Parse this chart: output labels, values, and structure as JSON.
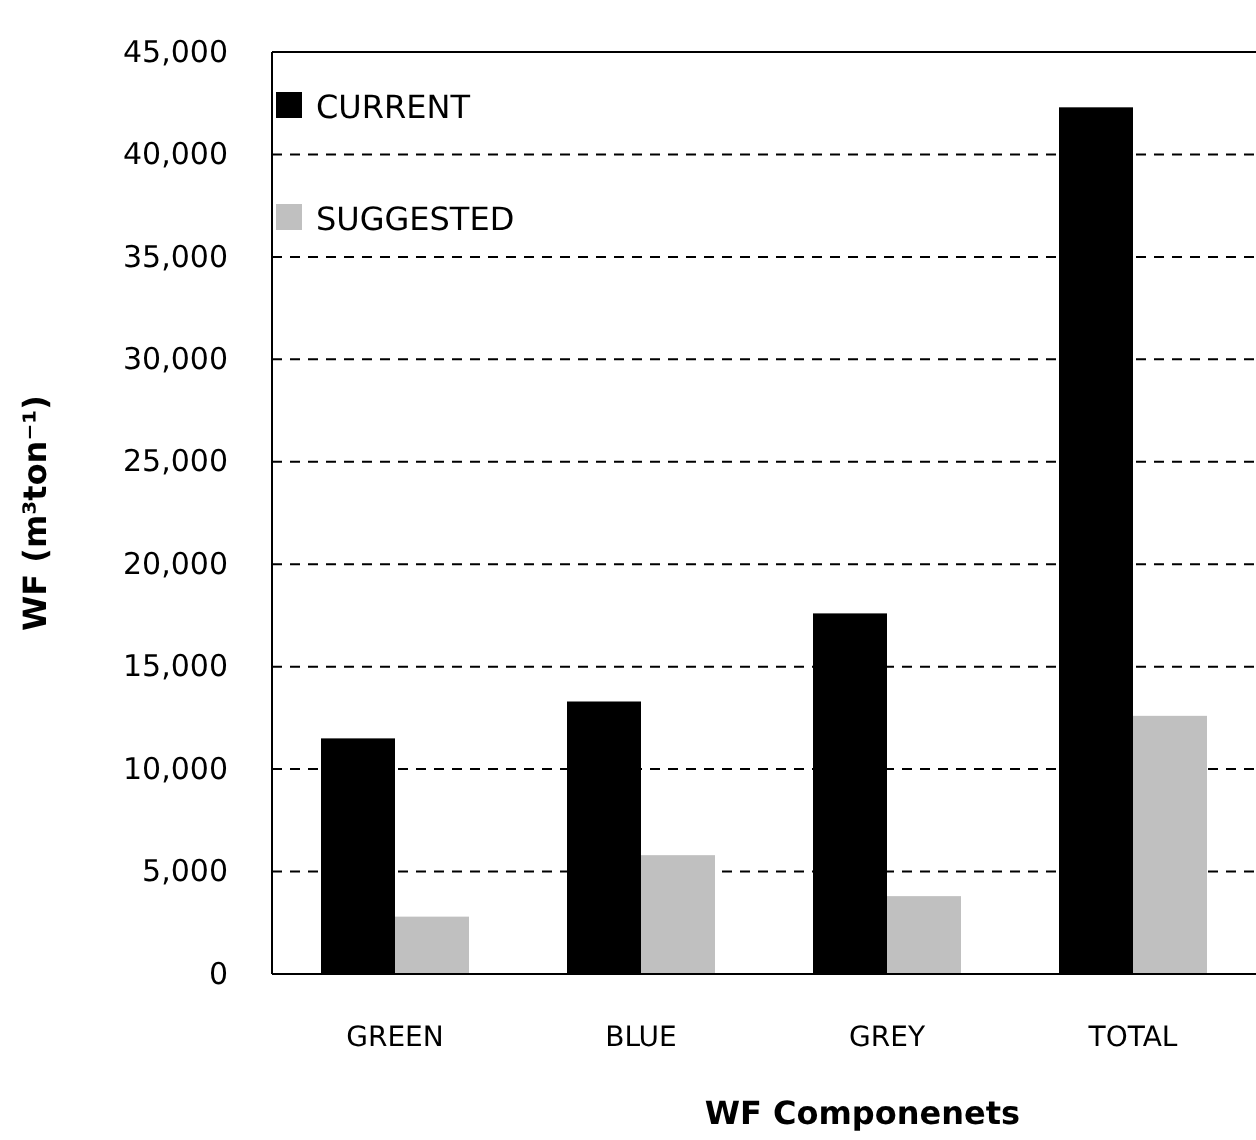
{
  "chart_data": {
    "type": "bar",
    "xlabel": "WF Componenets",
    "ylabel": "WF (m³ton⁻¹)",
    "categories": [
      "GREEN",
      "BLUE",
      "GREY",
      "TOTAL"
    ],
    "series": [
      {
        "name": "CURRENT",
        "color": "#000000",
        "values": [
          11500,
          13300,
          17600,
          42300
        ]
      },
      {
        "name": "SUGGESTED",
        "color": "#c0c0c0",
        "values": [
          2800,
          5800,
          3800,
          12600
        ]
      }
    ],
    "ylim": [
      0,
      45000
    ],
    "yticks": [
      {
        "value": 0,
        "label": "0"
      },
      {
        "value": 5000,
        "label": "5,000"
      },
      {
        "value": 10000,
        "label": "10,000"
      },
      {
        "value": 15000,
        "label": "15,000"
      },
      {
        "value": 20000,
        "label": "20,000"
      },
      {
        "value": 25000,
        "label": "25,000"
      },
      {
        "value": 30000,
        "label": "30,000"
      },
      {
        "value": 35000,
        "label": "35,000"
      },
      {
        "value": 40000,
        "label": "40,000"
      },
      {
        "value": 45000,
        "label": "45,000"
      }
    ],
    "grid": "y",
    "legend": "top left"
  }
}
